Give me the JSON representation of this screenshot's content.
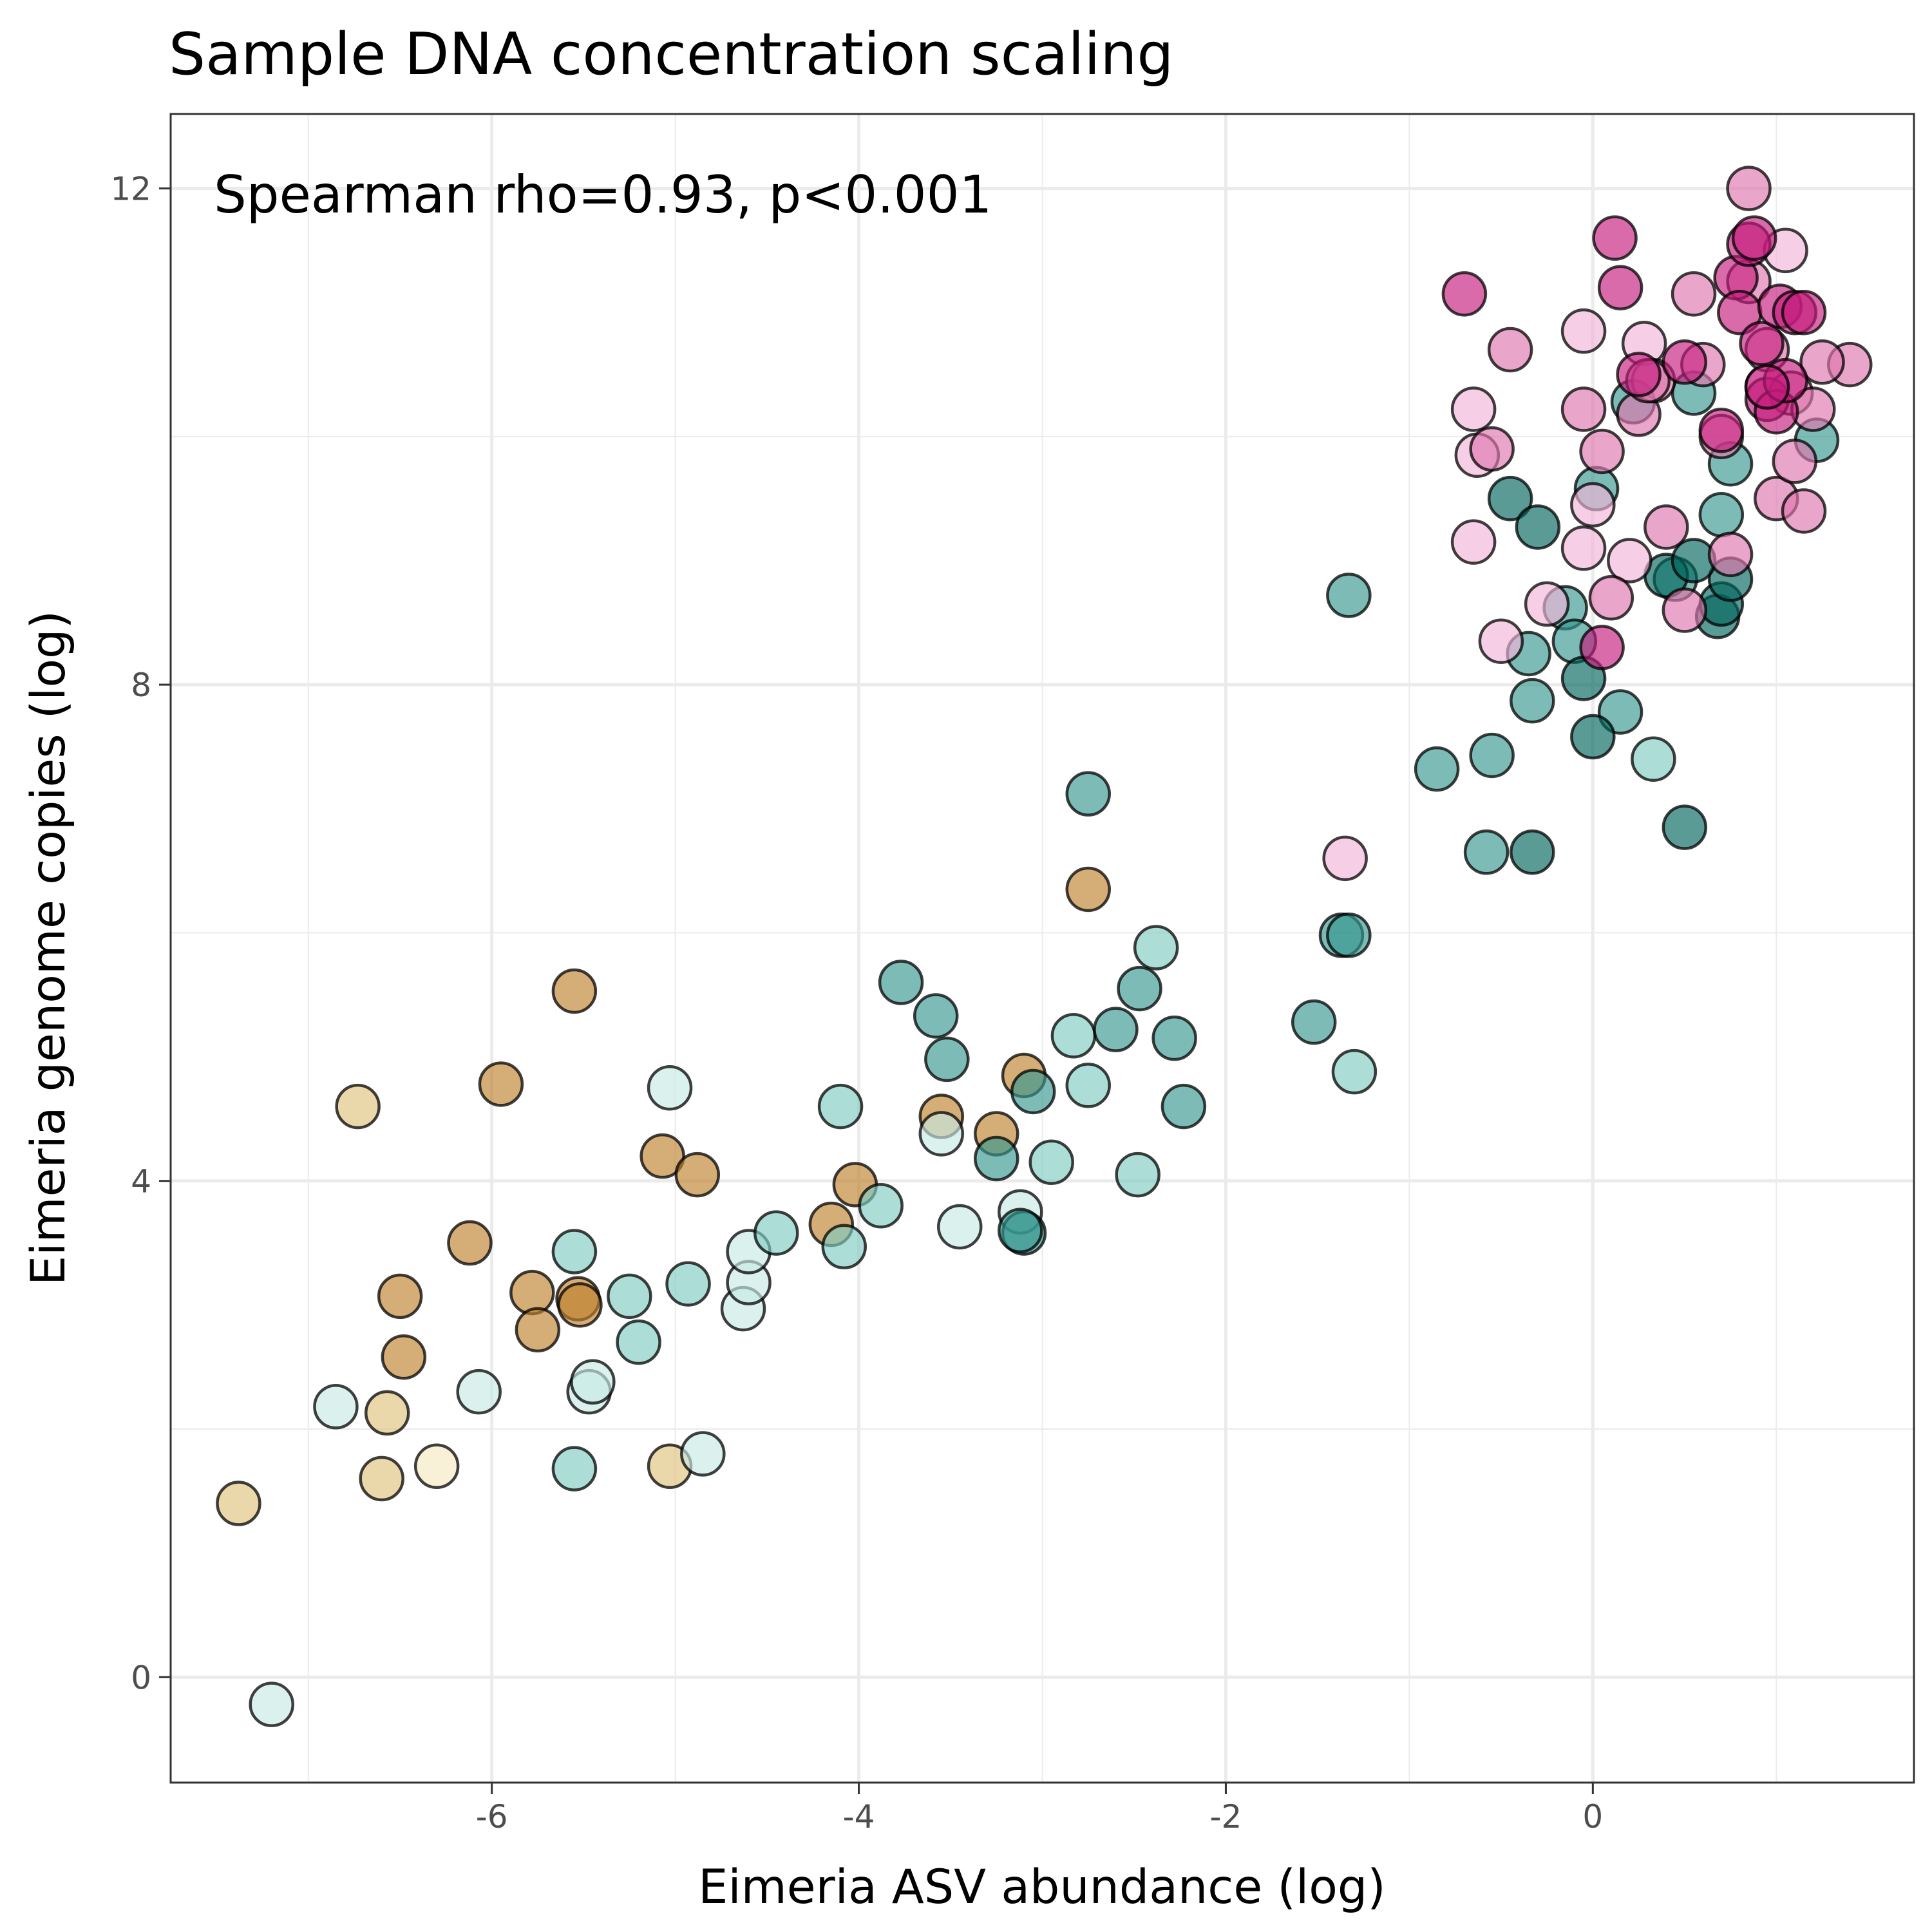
{
  "chart_data": {
    "type": "scatter",
    "title": "Sample DNA concentration scaling",
    "xlabel": "Eimeria ASV abundance (log)",
    "ylabel": "Eimeria genome copies (log)",
    "annotation": "Spearman rho=0.93, p<0.001",
    "xlim": [
      -7.75,
      1.75
    ],
    "ylim": [
      -0.85,
      12.6
    ],
    "x_ticks": [
      -6,
      -4,
      -2,
      0
    ],
    "x_tick_labels": [
      "-6",
      "-4",
      "-2",
      "0"
    ],
    "y_ticks": [
      0,
      4,
      8,
      12
    ],
    "y_tick_labels": [
      "0",
      "4",
      "8",
      "12"
    ],
    "grid": true,
    "marker": {
      "opacity": 0.65,
      "edge_color": "#000000"
    },
    "points": [
      {
        "x": -7.38,
        "y": 1.4,
        "color": "#dfc27d"
      },
      {
        "x": -6.73,
        "y": 4.6,
        "color": "#dfc27d"
      },
      {
        "x": -6.57,
        "y": 2.13,
        "color": "#dfc27d"
      },
      {
        "x": -6.6,
        "y": 1.6,
        "color": "#dfc27d"
      },
      {
        "x": -6.3,
        "y": 1.7,
        "color": "#f6e8c3"
      },
      {
        "x": -5.03,
        "y": 1.7,
        "color": "#dfc27d"
      },
      {
        "x": -6.5,
        "y": 3.07,
        "color": "#bf812d"
      },
      {
        "x": -6.48,
        "y": 2.58,
        "color": "#bf812d"
      },
      {
        "x": -6.12,
        "y": 3.5,
        "color": "#bf812d"
      },
      {
        "x": -5.95,
        "y": 4.78,
        "color": "#bf812d"
      },
      {
        "x": -5.78,
        "y": 3.1,
        "color": "#bf812d"
      },
      {
        "x": -5.75,
        "y": 2.8,
        "color": "#bf812d"
      },
      {
        "x": -5.55,
        "y": 5.53,
        "color": "#bf812d"
      },
      {
        "x": -5.53,
        "y": 3.05,
        "color": "#bf812d"
      },
      {
        "x": -5.52,
        "y": 3.0,
        "color": "#bf812d"
      },
      {
        "x": -5.07,
        "y": 4.2,
        "color": "#bf812d"
      },
      {
        "x": -4.88,
        "y": 4.05,
        "color": "#bf812d"
      },
      {
        "x": -4.15,
        "y": 3.65,
        "color": "#bf812d"
      },
      {
        "x": -4.02,
        "y": 3.97,
        "color": "#bf812d"
      },
      {
        "x": -3.55,
        "y": 4.52,
        "color": "#bf812d"
      },
      {
        "x": -3.25,
        "y": 4.38,
        "color": "#bf812d"
      },
      {
        "x": -3.1,
        "y": 4.85,
        "color": "#bf812d"
      },
      {
        "x": -2.75,
        "y": 6.35,
        "color": "#bf812d"
      },
      {
        "x": -7.2,
        "y": -0.22,
        "color": "#c7eae5"
      },
      {
        "x": -6.85,
        "y": 2.18,
        "color": "#c7eae5"
      },
      {
        "x": -6.07,
        "y": 2.3,
        "color": "#c7eae5"
      },
      {
        "x": -5.47,
        "y": 2.3,
        "color": "#c7eae5"
      },
      {
        "x": -5.45,
        "y": 2.38,
        "color": "#c7eae5"
      },
      {
        "x": -5.03,
        "y": 4.75,
        "color": "#c7eae5"
      },
      {
        "x": -4.85,
        "y": 1.8,
        "color": "#c7eae5"
      },
      {
        "x": -4.63,
        "y": 2.97,
        "color": "#c7eae5"
      },
      {
        "x": -4.6,
        "y": 3.18,
        "color": "#c7eae5"
      },
      {
        "x": -4.6,
        "y": 3.43,
        "color": "#c7eae5"
      },
      {
        "x": -3.55,
        "y": 4.38,
        "color": "#c7eae5"
      },
      {
        "x": -3.45,
        "y": 3.63,
        "color": "#c7eae5"
      },
      {
        "x": -3.12,
        "y": 3.75,
        "color": "#c7eae5"
      },
      {
        "x": -5.55,
        "y": 1.68,
        "color": "#80cdc1"
      },
      {
        "x": -5.55,
        "y": 3.43,
        "color": "#80cdc1"
      },
      {
        "x": -5.25,
        "y": 3.07,
        "color": "#80cdc1"
      },
      {
        "x": -5.2,
        "y": 2.7,
        "color": "#80cdc1"
      },
      {
        "x": -4.93,
        "y": 3.17,
        "color": "#80cdc1"
      },
      {
        "x": -4.45,
        "y": 3.58,
        "color": "#80cdc1"
      },
      {
        "x": -4.1,
        "y": 4.6,
        "color": "#80cdc1"
      },
      {
        "x": -4.08,
        "y": 3.47,
        "color": "#80cdc1"
      },
      {
        "x": -3.88,
        "y": 3.8,
        "color": "#80cdc1"
      },
      {
        "x": -2.95,
        "y": 4.15,
        "color": "#80cdc1"
      },
      {
        "x": -2.83,
        "y": 5.17,
        "color": "#80cdc1"
      },
      {
        "x": -2.75,
        "y": 4.77,
        "color": "#80cdc1"
      },
      {
        "x": -2.48,
        "y": 4.05,
        "color": "#80cdc1"
      },
      {
        "x": -2.38,
        "y": 5.88,
        "color": "#80cdc1"
      },
      {
        "x": -1.3,
        "y": 4.88,
        "color": "#80cdc1"
      },
      {
        "x": -3.77,
        "y": 5.6,
        "color": "#35978f"
      },
      {
        "x": -3.58,
        "y": 5.33,
        "color": "#35978f"
      },
      {
        "x": -3.52,
        "y": 4.98,
        "color": "#35978f"
      },
      {
        "x": -3.25,
        "y": 4.18,
        "color": "#35978f"
      },
      {
        "x": -3.05,
        "y": 4.72,
        "color": "#35978f"
      },
      {
        "x": -3.1,
        "y": 3.58,
        "color": "#35978f"
      },
      {
        "x": -3.12,
        "y": 3.6,
        "color": "#35978f"
      },
      {
        "x": -2.75,
        "y": 7.12,
        "color": "#35978f"
      },
      {
        "x": -2.6,
        "y": 5.22,
        "color": "#35978f"
      },
      {
        "x": -2.47,
        "y": 5.55,
        "color": "#35978f"
      },
      {
        "x": -2.28,
        "y": 5.15,
        "color": "#35978f"
      },
      {
        "x": -2.23,
        "y": 4.6,
        "color": "#35978f"
      },
      {
        "x": -1.52,
        "y": 5.28,
        "color": "#35978f"
      },
      {
        "x": -1.37,
        "y": 5.98,
        "color": "#35978f"
      },
      {
        "x": -1.33,
        "y": 5.98,
        "color": "#35978f"
      },
      {
        "x": -1.33,
        "y": 8.72,
        "color": "#35978f"
      },
      {
        "x": -0.85,
        "y": 7.32,
        "color": "#35978f"
      },
      {
        "x": -0.55,
        "y": 7.43,
        "color": "#35978f"
      },
      {
        "x": -0.58,
        "y": 6.65,
        "color": "#35978f"
      },
      {
        "x": -0.35,
        "y": 8.25,
        "color": "#35978f"
      },
      {
        "x": -0.33,
        "y": 7.87,
        "color": "#35978f"
      },
      {
        "x": -0.15,
        "y": 8.62,
        "color": "#35978f"
      },
      {
        "x": -0.1,
        "y": 8.35,
        "color": "#35978f"
      },
      {
        "x": 0.02,
        "y": 9.58,
        "color": "#35978f"
      },
      {
        "x": 0.15,
        "y": 7.78,
        "color": "#35978f"
      },
      {
        "x": 0.22,
        "y": 10.28,
        "color": "#35978f"
      },
      {
        "x": 0.33,
        "y": 7.4,
        "color": "#80cdc1"
      },
      {
        "x": 0.45,
        "y": 8.85,
        "color": "#35978f"
      },
      {
        "x": 0.55,
        "y": 10.35,
        "color": "#35978f"
      },
      {
        "x": 0.7,
        "y": 9.37,
        "color": "#35978f"
      },
      {
        "x": 0.75,
        "y": 9.78,
        "color": "#35978f"
      },
      {
        "x": 1.22,
        "y": 9.97,
        "color": "#35978f"
      },
      {
        "x": -0.45,
        "y": 9.5,
        "color": "#01665e"
      },
      {
        "x": -0.3,
        "y": 9.27,
        "color": "#01665e"
      },
      {
        "x": -0.33,
        "y": 6.65,
        "color": "#01665e"
      },
      {
        "x": -0.05,
        "y": 8.05,
        "color": "#01665e"
      },
      {
        "x": 0.0,
        "y": 7.58,
        "color": "#01665e"
      },
      {
        "x": 0.5,
        "y": 6.85,
        "color": "#01665e"
      },
      {
        "x": 0.68,
        "y": 8.55,
        "color": "#01665e"
      },
      {
        "x": 0.7,
        "y": 8.65,
        "color": "#01665e"
      },
      {
        "x": 0.75,
        "y": 8.85,
        "color": "#01665e"
      },
      {
        "x": 0.4,
        "y": 8.88,
        "color": "#01665e"
      },
      {
        "x": 0.55,
        "y": 9.0,
        "color": "#01665e"
      },
      {
        "x": -0.63,
        "y": 9.85,
        "color": "#f1b6da"
      },
      {
        "x": -0.65,
        "y": 9.15,
        "color": "#f1b6da"
      },
      {
        "x": -0.65,
        "y": 10.22,
        "color": "#f1b6da"
      },
      {
        "x": -0.5,
        "y": 8.35,
        "color": "#f1b6da"
      },
      {
        "x": -0.25,
        "y": 8.65,
        "color": "#f1b6da"
      },
      {
        "x": -1.35,
        "y": 6.6,
        "color": "#f1b6da"
      },
      {
        "x": 0.0,
        "y": 9.45,
        "color": "#f1b6da"
      },
      {
        "x": -0.05,
        "y": 10.85,
        "color": "#f1b6da"
      },
      {
        "x": -0.05,
        "y": 9.1,
        "color": "#f1b6da"
      },
      {
        "x": 0.28,
        "y": 10.75,
        "color": "#f1b6da"
      },
      {
        "x": 0.2,
        "y": 9.0,
        "color": "#f1b6da"
      },
      {
        "x": 1.05,
        "y": 11.5,
        "color": "#f1b6da"
      },
      {
        "x": 0.95,
        "y": 10.4,
        "color": "#f1b6da"
      },
      {
        "x": -0.55,
        "y": 9.9,
        "color": "#de77ae"
      },
      {
        "x": -0.45,
        "y": 10.7,
        "color": "#de77ae"
      },
      {
        "x": -0.05,
        "y": 10.22,
        "color": "#de77ae"
      },
      {
        "x": 0.05,
        "y": 9.88,
        "color": "#de77ae"
      },
      {
        "x": 0.1,
        "y": 8.7,
        "color": "#de77ae"
      },
      {
        "x": 0.25,
        "y": 10.18,
        "color": "#de77ae"
      },
      {
        "x": 0.33,
        "y": 10.45,
        "color": "#de77ae"
      },
      {
        "x": 0.4,
        "y": 9.27,
        "color": "#de77ae"
      },
      {
        "x": 0.5,
        "y": 8.6,
        "color": "#de77ae"
      },
      {
        "x": 0.6,
        "y": 10.58,
        "color": "#de77ae"
      },
      {
        "x": 0.7,
        "y": 10.0,
        "color": "#de77ae"
      },
      {
        "x": 0.75,
        "y": 9.05,
        "color": "#de77ae"
      },
      {
        "x": 0.85,
        "y": 12.0,
        "color": "#de77ae"
      },
      {
        "x": 0.95,
        "y": 10.7,
        "color": "#de77ae"
      },
      {
        "x": 1.0,
        "y": 9.5,
        "color": "#de77ae"
      },
      {
        "x": 1.08,
        "y": 10.35,
        "color": "#de77ae"
      },
      {
        "x": 1.1,
        "y": 9.8,
        "color": "#de77ae"
      },
      {
        "x": 1.15,
        "y": 9.4,
        "color": "#de77ae"
      },
      {
        "x": 1.2,
        "y": 10.22,
        "color": "#de77ae"
      },
      {
        "x": 1.4,
        "y": 10.58,
        "color": "#de77ae"
      },
      {
        "x": 1.25,
        "y": 10.6,
        "color": "#de77ae"
      },
      {
        "x": 0.55,
        "y": 11.15,
        "color": "#de77ae"
      },
      {
        "x": 0.85,
        "y": 11.25,
        "color": "#de77ae"
      },
      {
        "x": 0.3,
        "y": 10.45,
        "color": "#de77ae"
      },
      {
        "x": -0.7,
        "y": 11.15,
        "color": "#c51b7d"
      },
      {
        "x": 0.12,
        "y": 11.6,
        "color": "#c51b7d"
      },
      {
        "x": 0.15,
        "y": 11.2,
        "color": "#c51b7d"
      },
      {
        "x": 0.05,
        "y": 8.3,
        "color": "#c51b7d"
      },
      {
        "x": 0.25,
        "y": 10.5,
        "color": "#c51b7d"
      },
      {
        "x": 0.5,
        "y": 10.6,
        "color": "#c51b7d"
      },
      {
        "x": 0.7,
        "y": 10.05,
        "color": "#c51b7d"
      },
      {
        "x": 0.78,
        "y": 11.28,
        "color": "#c51b7d"
      },
      {
        "x": 0.8,
        "y": 11.0,
        "color": "#c51b7d"
      },
      {
        "x": 0.85,
        "y": 11.55,
        "color": "#c51b7d"
      },
      {
        "x": 0.88,
        "y": 11.6,
        "color": "#c51b7d"
      },
      {
        "x": 0.92,
        "y": 10.75,
        "color": "#c51b7d"
      },
      {
        "x": 0.95,
        "y": 10.3,
        "color": "#c51b7d"
      },
      {
        "x": 1.0,
        "y": 10.2,
        "color": "#c51b7d"
      },
      {
        "x": 1.02,
        "y": 11.05,
        "color": "#c51b7d"
      },
      {
        "x": 1.05,
        "y": 10.45,
        "color": "#c51b7d"
      },
      {
        "x": 1.1,
        "y": 11.0,
        "color": "#c51b7d"
      },
      {
        "x": 1.15,
        "y": 11.0,
        "color": "#c51b7d"
      },
      {
        "x": 0.95,
        "y": 10.4,
        "color": "#c51b7d"
      }
    ]
  }
}
